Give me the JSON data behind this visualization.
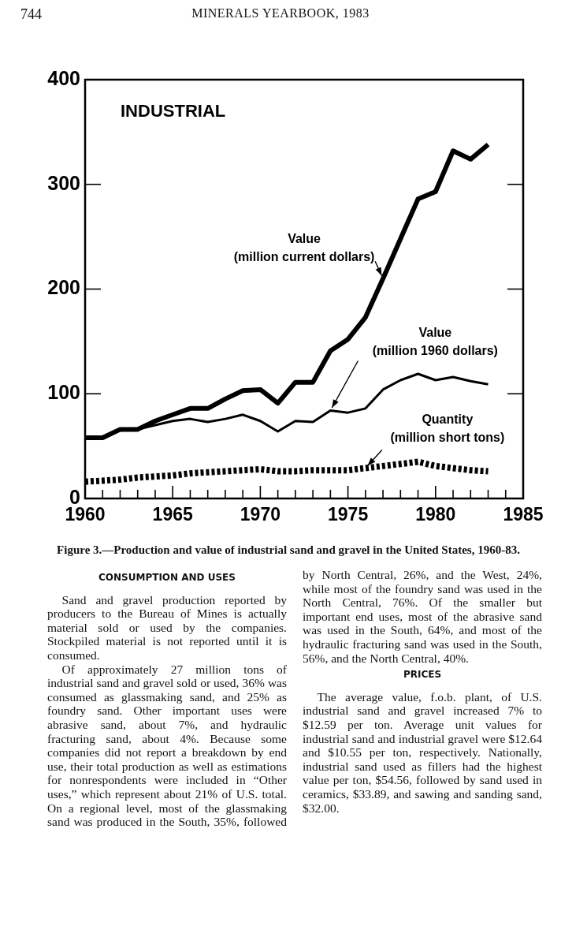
{
  "chart_data": {
    "type": "line",
    "title": "INDUSTRIAL",
    "x": [
      1960,
      1961,
      1962,
      1963,
      1964,
      1965,
      1966,
      1967,
      1968,
      1969,
      1970,
      1971,
      1972,
      1973,
      1974,
      1975,
      1976,
      1977,
      1978,
      1979,
      1980,
      1981,
      1982,
      1983
    ],
    "series": [
      {
        "name": "Value\n(million current dollars)",
        "color": "#000000",
        "line_style": "solid",
        "values": [
          58,
          58,
          66,
          66,
          74,
          80,
          86,
          86,
          95,
          103,
          104,
          91,
          111,
          111,
          141,
          152,
          173,
          210,
          248,
          286,
          293,
          332,
          324,
          338
        ]
      },
      {
        "name": "Value\n(million 1960 dollars)",
        "color": "#000000",
        "line_style": "solid",
        "values": [
          58,
          58,
          65,
          66,
          70,
          74,
          76,
          73,
          76,
          80,
          74,
          64,
          74,
          73,
          84,
          82,
          86,
          104,
          113,
          119,
          113,
          116,
          112,
          109
        ]
      },
      {
        "name": "Quantity\n(million short tons)",
        "color": "#000000",
        "line_style": "dotted",
        "values": [
          16,
          17,
          18,
          20,
          21,
          22,
          24,
          25,
          26,
          27,
          28,
          26,
          26,
          27,
          27,
          27,
          29,
          31,
          33,
          35,
          31,
          29,
          27,
          26
        ]
      }
    ],
    "xlim": [
      1960,
      1985
    ],
    "xticks": [
      1960,
      {
        "value": 1961,
        "label": null
      },
      {
        "value": 1962,
        "label": null
      },
      {
        "value": 1963,
        "label": null
      },
      {
        "value": 1964,
        "label": null
      },
      1965,
      {
        "value": 1966,
        "label": null
      },
      {
        "value": 1967,
        "label": null
      },
      {
        "value": 1968,
        "label": null
      },
      {
        "value": 1969,
        "label": null
      },
      1970,
      {
        "value": 1971,
        "label": null
      },
      {
        "value": 1972,
        "label": null
      },
      {
        "value": 1973,
        "label": null
      },
      {
        "value": 1974,
        "label": null
      },
      1975,
      {
        "value": 1976,
        "label": null
      },
      {
        "value": 1977,
        "label": null
      },
      {
        "value": 1978,
        "label": null
      },
      {
        "value": 1979,
        "label": null
      },
      1980,
      {
        "value": 1981,
        "label": null
      },
      {
        "value": 1982,
        "label": null
      },
      {
        "value": 1983,
        "label": null
      },
      {
        "value": 1984,
        "label": null
      },
      1985
    ],
    "ylim": [
      0,
      400
    ],
    "yticks": [
      0,
      100,
      200,
      300,
      400
    ],
    "grid": false,
    "legend": false,
    "marker": "none",
    "annotations": [
      "744",
      "MINERALS YEARBOOK, 1983",
      "Figure 3.—Production and value of industrial sand and gravel in the United States, 1960-83.",
      "CONSUMPTION AND USES",
      "Sand and gravel production reported by producers to the Bureau of Mines is actually material sold or used by the companies. Stockpiled material is not reported until it is consumed.",
      "Of approximately 27 million tons of industrial sand and gravel sold or used, 36% was consumed as glassmaking sand, and 25% as foundry sand. Other important uses were abrasive sand, about 7%, and hydraulic fracturing sand, about 4%. Because some companies did not report a breakdown by end use, their total production as well as estimations for nonrespondents were included in “Other uses,” which represent about 21% of U.S. total. On a regional level, most of the glassmaking sand was produced in the South, 35%, followed by North Central, 26%, and the West, 24%, while most of the foundry sand was used in the North Central, 76%. Of the smaller but important end uses, most of the abrasive sand was used in the South, 64%, and most of the hydraulic fracturing sand was used in the South, 56%, and the North Central, 40%.",
      "PRICES",
      "The average value, f.o.b. plant, of U.S. industrial sand and gravel increased 7% to $12.59 per ton. Average unit values for industrial sand and industrial gravel were $12.64 and $10.55 per ton, respectively. Nationally, industrial sand used as fillers had the highest value per ton, $54.56, followed by sand used in ceramics, $33.89, and sawing and sanding sand, $32.00."
    ]
  }
}
